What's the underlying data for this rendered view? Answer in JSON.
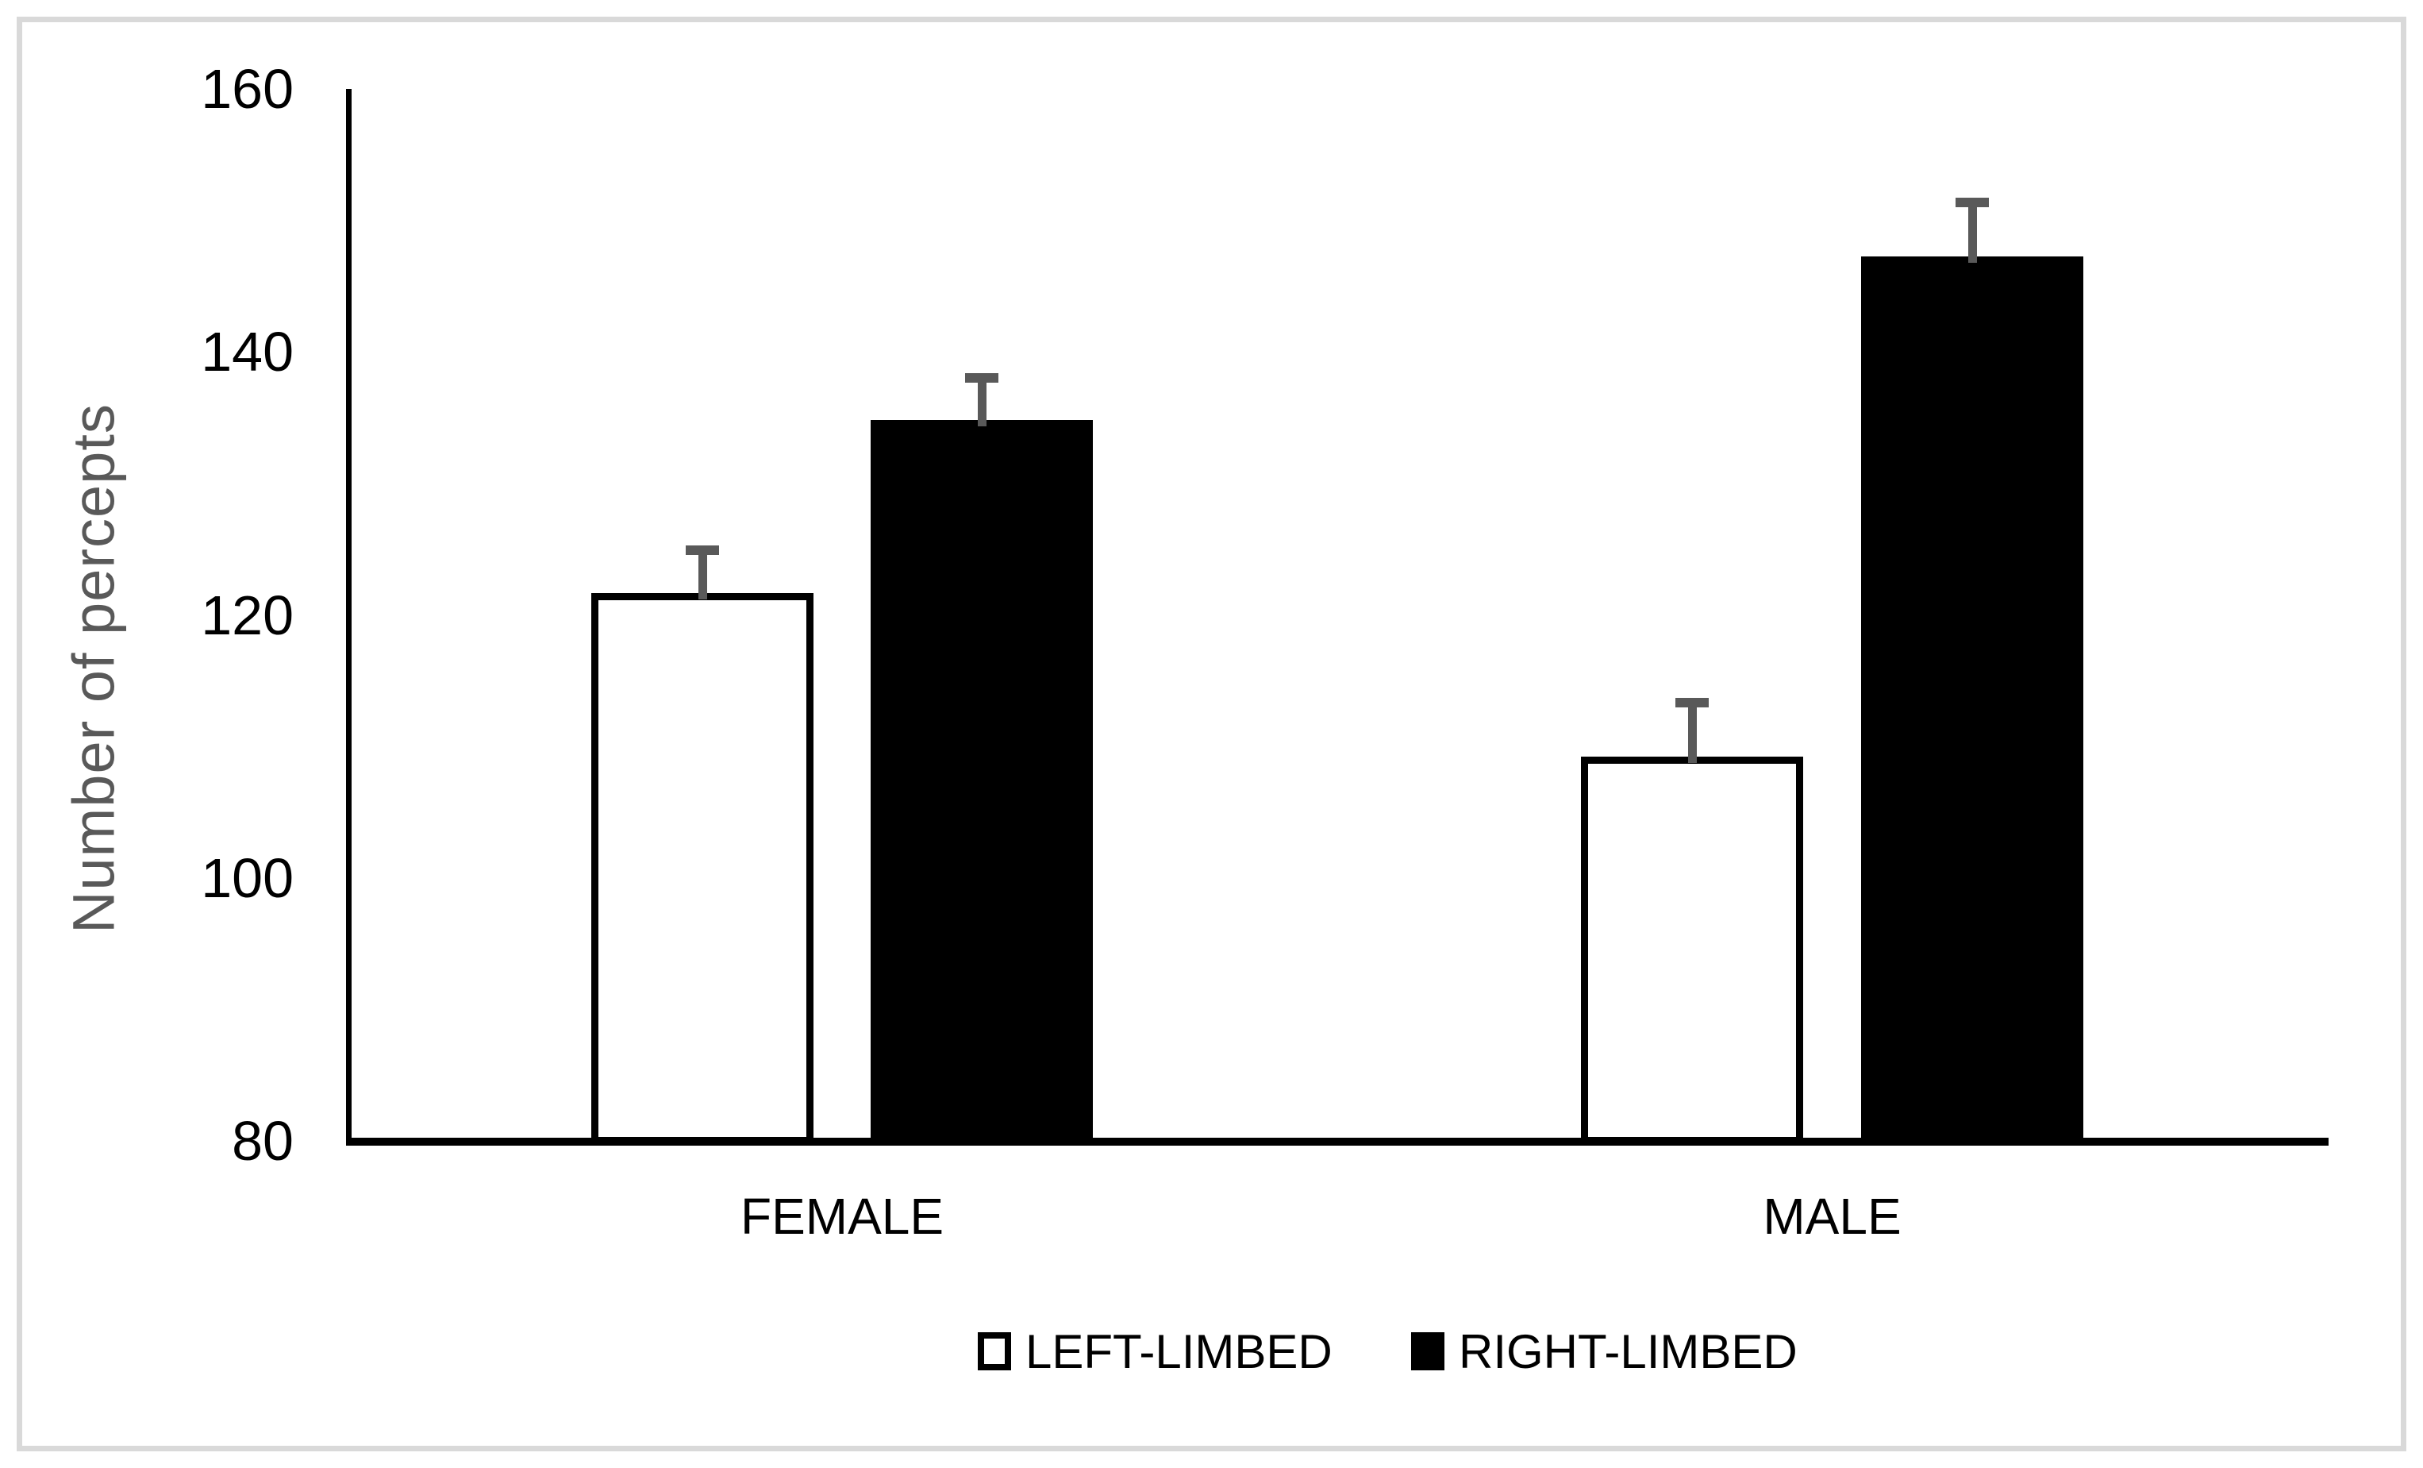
{
  "chart_data": {
    "type": "bar",
    "title": "",
    "categories": [
      "FEMALE",
      "MALE"
    ],
    "series": [
      {
        "name": "LEFT-LIMBED",
        "style": "white-outlined",
        "values": [
          121.4,
          109.0
        ],
        "errors_upper": [
          3.9,
          4.7
        ]
      },
      {
        "name": "RIGHT-LIMBED",
        "style": "black-solid",
        "values": [
          134.6,
          147.0
        ],
        "errors_upper": [
          3.8,
          4.7
        ]
      }
    ],
    "xlabel": "",
    "ylabel": "Number of percepts",
    "ylim": [
      80,
      160
    ],
    "y_ticks": [
      160,
      140,
      120,
      100,
      80
    ],
    "grid": false,
    "legend_position": "bottom-center",
    "error_bar_color": "#595959",
    "axis_title_color": "#595959",
    "bar_border_color": "#000000",
    "frame_color": "#d9d9d9"
  }
}
